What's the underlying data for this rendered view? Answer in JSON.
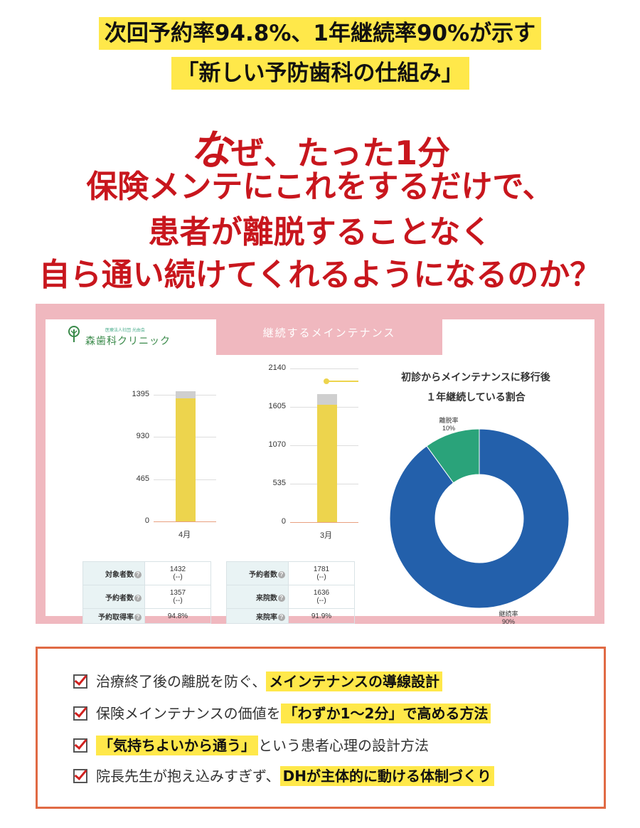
{
  "header": {
    "line1": "次回予約率94.8%、1年継続率90%が示す",
    "line2": "「新しい予防歯科の仕組み」"
  },
  "headline": {
    "r1_big": "な",
    "r1_rest": "ぜ、たった1分",
    "r2": "保険メンテにこれをするだけで、",
    "r3": "患者が離脱することなく",
    "r4": "自ら通い続けてくれるようになるのか？"
  },
  "panel": {
    "tab_label": "継続するメインテナンス",
    "logo_small": "医療法人社団 光由会",
    "logo_name": "森歯科クリニック"
  },
  "chart_data": [
    {
      "type": "bar",
      "categories": [
        "4月"
      ],
      "yticks": [
        "1395",
        "930",
        "465",
        "0"
      ],
      "ylim": [
        0,
        1395
      ],
      "series": [
        {
          "values": [
            1357
          ]
        },
        {
          "values": [
            1432
          ]
        }
      ]
    },
    {
      "type": "bar",
      "categories": [
        "3月"
      ],
      "yticks": [
        "2140",
        "1605",
        "1070",
        "535",
        "0"
      ],
      "ylim": [
        0,
        2140
      ],
      "series": [
        {
          "values": [
            1636
          ]
        },
        {
          "values": [
            1781
          ]
        }
      ]
    },
    {
      "type": "pie",
      "title_line1": "初診からメインテナンスに移行後",
      "title_line2": "１年継続している割合",
      "labels": [
        "離脱率",
        "継続率"
      ],
      "values": [
        10,
        90
      ],
      "value_labels": [
        "10%",
        "90%"
      ],
      "colors": [
        "#2aa37a",
        "#2360ab"
      ]
    }
  ],
  "table1": [
    {
      "k": "対象者数",
      "v1": "1432",
      "v2": "(--)"
    },
    {
      "k": "予約者数",
      "v1": "1357",
      "v2": "(--)"
    },
    {
      "k": "予約取得率",
      "v1": "94.8%",
      "v2": ""
    }
  ],
  "table2": [
    {
      "k": "予約者数",
      "v1": "1781",
      "v2": "(--)"
    },
    {
      "k": "来院数",
      "v1": "1636",
      "v2": "(--)"
    },
    {
      "k": "来院率",
      "v1": "91.9%",
      "v2": ""
    }
  ],
  "help_icon": "?",
  "checklist": [
    {
      "pre": "治療終了後の離脱を防ぐ、",
      "hl": "メインテナンスの導線設計",
      "post": ""
    },
    {
      "pre": "保険メインテナンスの価値を",
      "hl": "「わずか1～2分」で高める方法",
      "post": ""
    },
    {
      "pre": "",
      "hl": "「気持ちよいから通う」",
      "post": "という患者心理の設計方法"
    },
    {
      "pre": "院長先生が抱え込みすぎず、",
      "hl": "DHが主体的に動ける体制づくり",
      "post": ""
    }
  ],
  "colors": {
    "accent_red": "#c8161d",
    "highlight": "#ffe84a",
    "panel_pink": "#f0b8bf",
    "box_border": "#e06a44"
  }
}
